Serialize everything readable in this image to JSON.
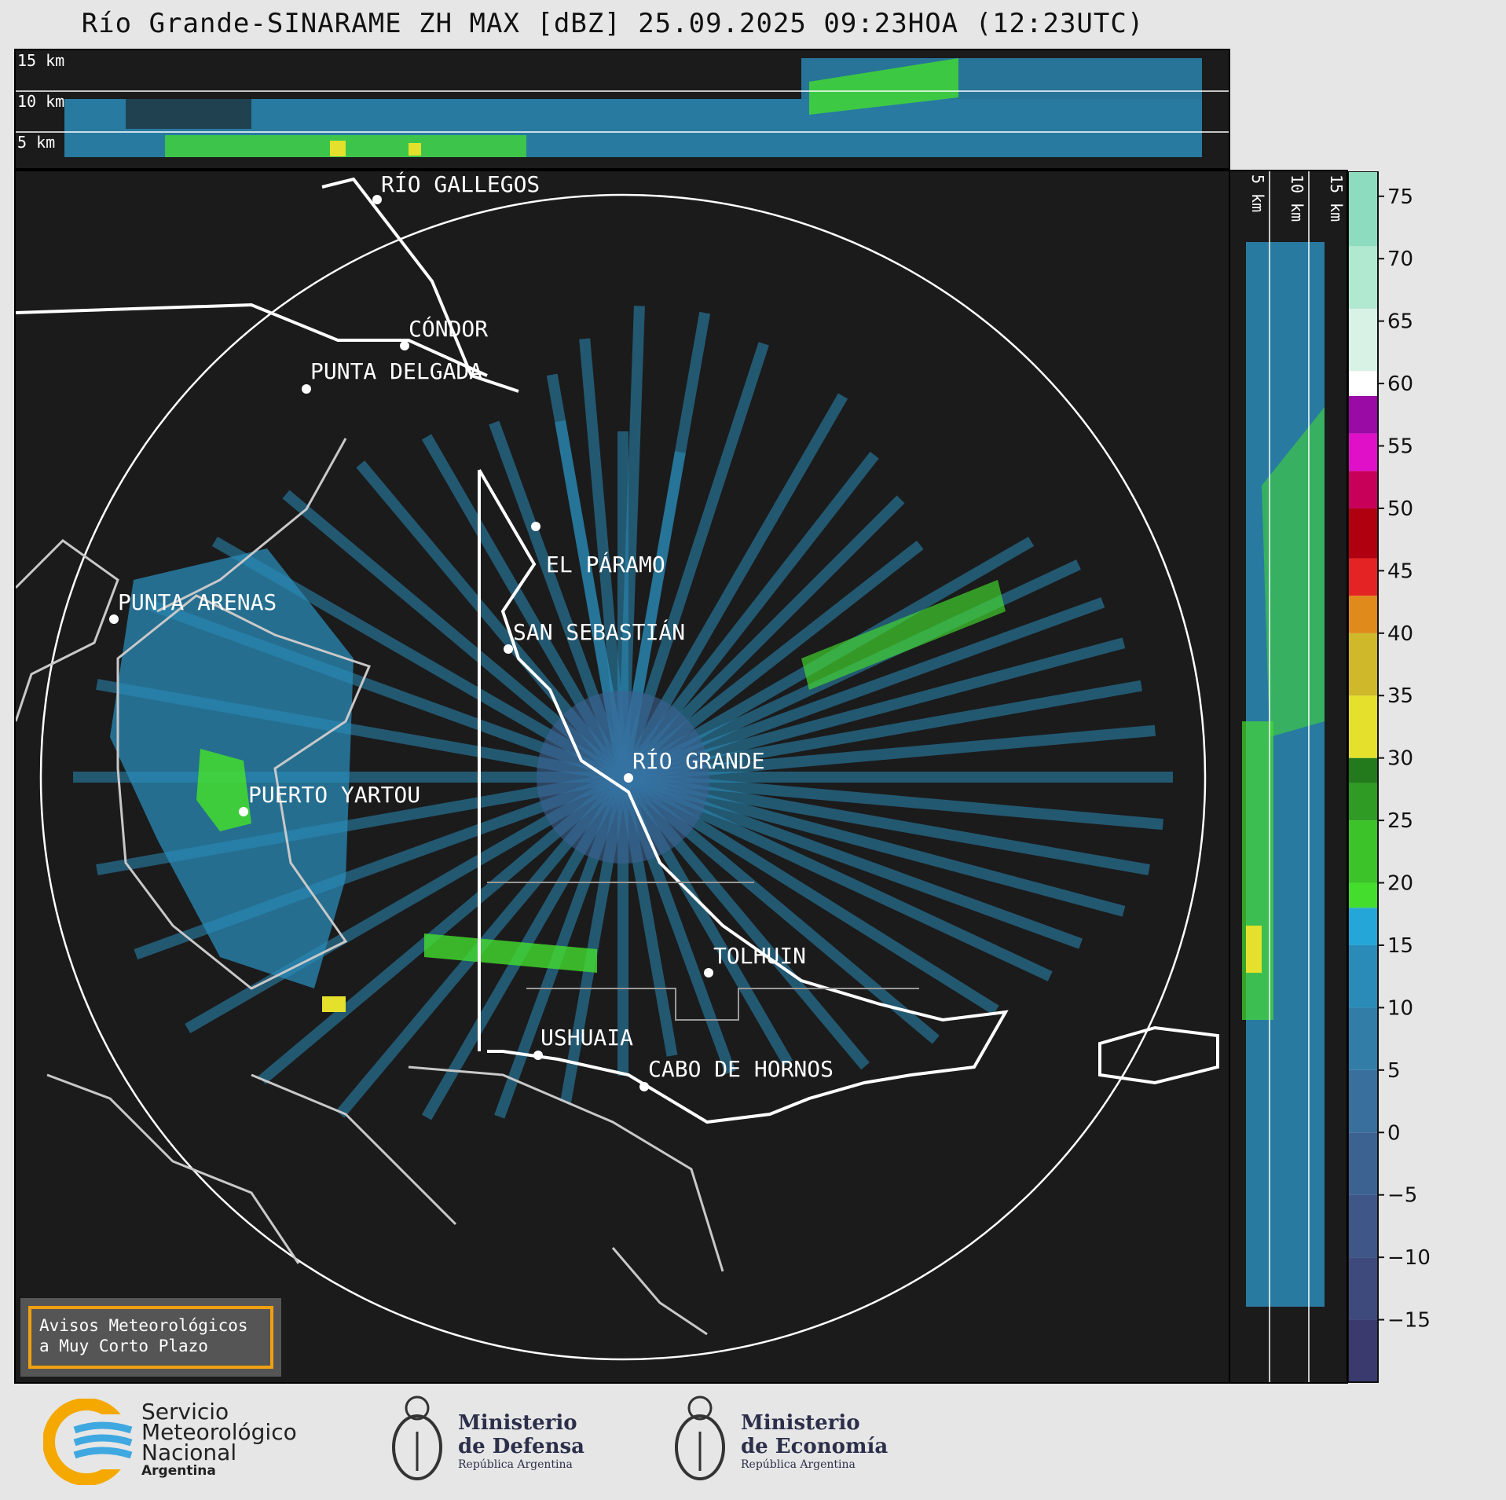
{
  "title": "Río Grande-SINARAME ZH MAX [dBZ] 25.09.2025 09:23HOA (12:23UTC)",
  "height_labels": [
    "15 km",
    "10 km",
    "5 km"
  ],
  "cities": [
    {
      "name": "RÍO GALLEGOS"
    },
    {
      "name": "CÓNDOR"
    },
    {
      "name": "PUNTA DELGADA"
    },
    {
      "name": "EL PÁRAMO"
    },
    {
      "name": "PUNTA ARENAS"
    },
    {
      "name": "SAN SEBASTIÁN"
    },
    {
      "name": "RÍO GRANDE"
    },
    {
      "name": "PUERTO YARTOU"
    },
    {
      "name": "TOLHUIN"
    },
    {
      "name": "USHUAIA"
    },
    {
      "name": "CABO DE HORNOS"
    }
  ],
  "colorbar": {
    "ticks": [
      "75",
      "70",
      "65",
      "60",
      "55",
      "50",
      "45",
      "40",
      "35",
      "30",
      "25",
      "20",
      "15",
      "10",
      "5",
      "0",
      "−5",
      "−10",
      "−15"
    ],
    "min": -20,
    "max": 77,
    "colors": [
      {
        "from": -20,
        "to": -15,
        "color": "#3a3a6e"
      },
      {
        "from": -15,
        "to": -10,
        "color": "#3f4a7c"
      },
      {
        "from": -10,
        "to": -5,
        "color": "#3e5688"
      },
      {
        "from": -5,
        "to": 0,
        "color": "#3c6292"
      },
      {
        "from": 0,
        "to": 5,
        "color": "#386f9c"
      },
      {
        "from": 5,
        "to": 10,
        "color": "#327da8"
      },
      {
        "from": 10,
        "to": 15,
        "color": "#2a8bb8"
      },
      {
        "from": 15,
        "to": 18,
        "color": "#25a6d8"
      },
      {
        "from": 18,
        "to": 20,
        "color": "#44dd2e"
      },
      {
        "from": 20,
        "to": 25,
        "color": "#3cc32a"
      },
      {
        "from": 25,
        "to": 28,
        "color": "#2f9a24"
      },
      {
        "from": 28,
        "to": 30,
        "color": "#237a1d"
      },
      {
        "from": 30,
        "to": 35,
        "color": "#e4e02c"
      },
      {
        "from": 35,
        "to": 40,
        "color": "#cfb82a"
      },
      {
        "from": 40,
        "to": 43,
        "color": "#e08a1c"
      },
      {
        "from": 43,
        "to": 46,
        "color": "#e42424"
      },
      {
        "from": 46,
        "to": 50,
        "color": "#b00010"
      },
      {
        "from": 50,
        "to": 53,
        "color": "#c8005a"
      },
      {
        "from": 53,
        "to": 56,
        "color": "#e010c8"
      },
      {
        "from": 56,
        "to": 59,
        "color": "#9a0aa4"
      },
      {
        "from": 59,
        "to": 61,
        "color": "#ffffff"
      },
      {
        "from": 61,
        "to": 66,
        "color": "#d8f2e6"
      },
      {
        "from": 66,
        "to": 71,
        "color": "#b0e8d0"
      },
      {
        "from": 71,
        "to": 77,
        "color": "#8edcc0"
      }
    ]
  },
  "alert": {
    "line1": "Avisos Meteorológicos",
    "line2": "a Muy Corto Plazo"
  },
  "logos": {
    "smn": {
      "line1": "Servicio",
      "line2": "Meteorológico",
      "line3": "Nacional",
      "line4": "Argentina"
    },
    "defensa": {
      "line1": "Ministerio",
      "line2": "de Defensa",
      "line3": "República Argentina"
    },
    "economia": {
      "line1": "Ministerio",
      "line2": "de Economía",
      "line3": "República Argentina"
    }
  },
  "accent_colors": {
    "radar_bg": "#1b1b1b",
    "echo_blue": "#2a8bb8",
    "echo_green": "#44dd2e",
    "alert_border": "#f0a010"
  }
}
